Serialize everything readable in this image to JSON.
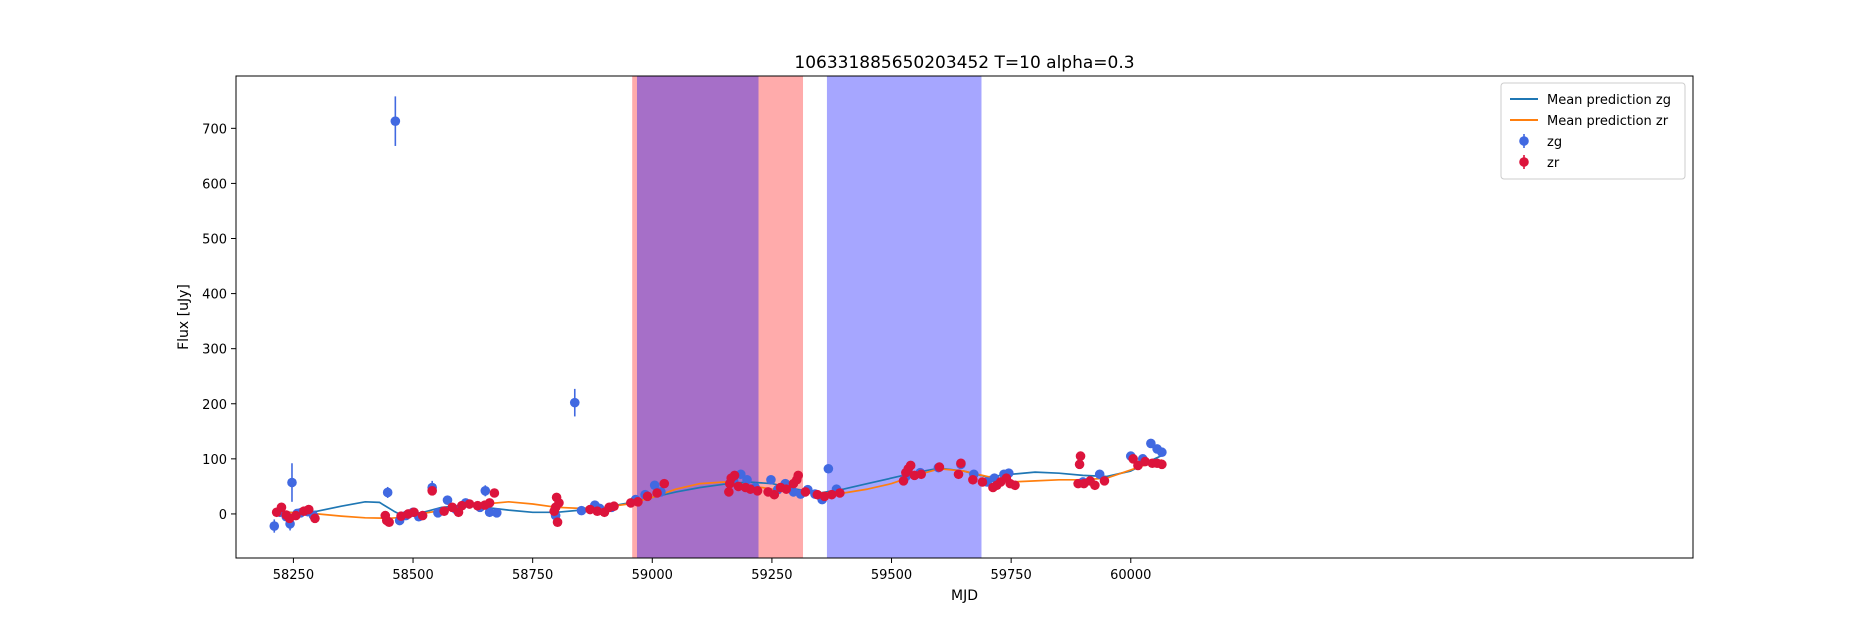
{
  "chart_data": {
    "type": "scatter",
    "title": "106331885650203452 T=10 alpha=0.3",
    "xlabel": "MJD",
    "ylabel": "Flux [uJy]",
    "xlim": [
      58130,
      61175
    ],
    "ylim": [
      -80,
      795
    ],
    "xticks": [
      58250,
      58500,
      58750,
      59000,
      59250,
      59500,
      59750,
      60000
    ],
    "yticks": [
      0,
      100,
      200,
      300,
      400,
      500,
      600,
      700
    ],
    "grid": false,
    "legend_position": "upper right",
    "legend": [
      {
        "label": "Mean prediction zg",
        "kind": "line",
        "color": "#1f77b4"
      },
      {
        "label": "Mean prediction zr",
        "kind": "line",
        "color": "#ff7f0e"
      },
      {
        "label": "zg",
        "kind": "errorbar",
        "color": "#4169e1"
      },
      {
        "label": "zr",
        "kind": "errorbar",
        "color": "#dc143c"
      }
    ],
    "bands": [
      {
        "x0": 58958,
        "x1": 59315,
        "color": "#ff0000",
        "opacity": 0.33
      },
      {
        "x0": 58968,
        "x1": 59222,
        "color": "#0000ff",
        "opacity": 0.35
      },
      {
        "x0": 59365,
        "x1": 59688,
        "color": "#0000ff",
        "opacity": 0.35
      }
    ],
    "lines": [
      {
        "name": "Mean prediction zg",
        "color": "#1f77b4",
        "x": [
          58210,
          58260,
          58300,
          58350,
          58400,
          58430,
          58460,
          58480,
          58500,
          58530,
          58560,
          58600,
          58650,
          58700,
          58750,
          58800,
          58850,
          58900,
          58950,
          59000,
          59050,
          59100,
          59150,
          59200,
          59250,
          59300,
          59350,
          59400,
          59450,
          59500,
          59550,
          59600,
          59650,
          59700,
          59750,
          59800,
          59850,
          59900,
          59950,
          60000,
          60050,
          60065
        ],
        "y": [
          5,
          2,
          5,
          14,
          22,
          21,
          5,
          -4,
          -2,
          5,
          12,
          15,
          12,
          7,
          3,
          3,
          7,
          12,
          20,
          30,
          40,
          48,
          54,
          58,
          55,
          45,
          38,
          45,
          55,
          65,
          75,
          83,
          78,
          67,
          72,
          76,
          74,
          70,
          68,
          78,
          100,
          106
        ]
      },
      {
        "name": "Mean prediction zr",
        "color": "#ff7f0e",
        "x": [
          58210,
          58260,
          58300,
          58350,
          58400,
          58450,
          58480,
          58500,
          58550,
          58600,
          58650,
          58700,
          58750,
          58800,
          58850,
          58900,
          58950,
          59000,
          59050,
          59100,
          59150,
          59200,
          59250,
          59300,
          59350,
          59400,
          59450,
          59500,
          59550,
          59600,
          59650,
          59700,
          59750,
          59800,
          59850,
          59900,
          59950,
          60000,
          60050,
          60065
        ],
        "y": [
          2,
          3,
          0,
          -4,
          -7,
          -8,
          -6,
          -2,
          5,
          12,
          18,
          22,
          18,
          12,
          10,
          12,
          18,
          30,
          45,
          55,
          58,
          52,
          45,
          42,
          38,
          38,
          45,
          55,
          70,
          82,
          78,
          68,
          58,
          60,
          62,
          62,
          65,
          80,
          95,
          98
        ]
      }
    ],
    "series": [
      {
        "name": "zg",
        "color": "#4169e1",
        "points": [
          [
            58210,
            -22,
            12
          ],
          [
            58222,
            3,
            6
          ],
          [
            58235,
            -5,
            8
          ],
          [
            58243,
            -18,
            12
          ],
          [
            58247,
            57,
            35
          ],
          [
            58258,
            1,
            5
          ],
          [
            58265,
            2,
            5
          ],
          [
            58280,
            4,
            5
          ],
          [
            58292,
            -3,
            5
          ],
          [
            58447,
            39,
            10
          ],
          [
            58463,
            713,
            45
          ],
          [
            58472,
            -12,
            6
          ],
          [
            58485,
            -3,
            5
          ],
          [
            58500,
            3,
            5
          ],
          [
            58512,
            -5,
            5
          ],
          [
            58540,
            48,
            12
          ],
          [
            58552,
            2,
            5
          ],
          [
            58572,
            25,
            6
          ],
          [
            58590,
            8,
            5
          ],
          [
            58610,
            20,
            6
          ],
          [
            58640,
            12,
            6
          ],
          [
            58651,
            42,
            10
          ],
          [
            58660,
            3,
            6
          ],
          [
            58675,
            2,
            5
          ],
          [
            58798,
            -3,
            8
          ],
          [
            58838,
            202,
            25
          ],
          [
            58852,
            6,
            5
          ],
          [
            58880,
            16,
            5
          ],
          [
            58890,
            10,
            5
          ],
          [
            58915,
            12,
            5
          ],
          [
            58965,
            26,
            4
          ],
          [
            58985,
            35,
            5
          ],
          [
            59005,
            52,
            5
          ],
          [
            59018,
            40,
            5
          ],
          [
            59170,
            60,
            6
          ],
          [
            59185,
            72,
            6
          ],
          [
            59198,
            62,
            6
          ],
          [
            59215,
            48,
            5
          ],
          [
            59248,
            62,
            5
          ],
          [
            59262,
            44,
            5
          ],
          [
            59278,
            55,
            5
          ],
          [
            59295,
            40,
            5
          ],
          [
            59310,
            36,
            5
          ],
          [
            59325,
            44,
            5
          ],
          [
            59340,
            36,
            5
          ],
          [
            59355,
            26,
            6
          ],
          [
            59368,
            82,
            6
          ],
          [
            59385,
            45,
            5
          ],
          [
            59530,
            68,
            5
          ],
          [
            59560,
            75,
            5
          ],
          [
            59598,
            84,
            5
          ],
          [
            59645,
            90,
            5
          ],
          [
            59672,
            72,
            5
          ],
          [
            59700,
            58,
            5
          ],
          [
            59715,
            65,
            5
          ],
          [
            59735,
            72,
            5
          ],
          [
            59745,
            74,
            6
          ],
          [
            59900,
            58,
            5
          ],
          [
            59935,
            72,
            5
          ],
          [
            60000,
            105,
            5
          ],
          [
            60025,
            100,
            5
          ],
          [
            60042,
            128,
            6
          ],
          [
            60055,
            118,
            6
          ],
          [
            60065,
            112,
            6
          ]
        ]
      },
      {
        "name": "zr",
        "color": "#dc143c",
        "points": [
          [
            58215,
            3,
            6
          ],
          [
            58225,
            12,
            6
          ],
          [
            58235,
            -2,
            6
          ],
          [
            58242,
            -8,
            6
          ],
          [
            58255,
            -3,
            5
          ],
          [
            58272,
            5,
            5
          ],
          [
            58282,
            8,
            5
          ],
          [
            58295,
            -8,
            5
          ],
          [
            58442,
            -3,
            5
          ],
          [
            58445,
            -12,
            5
          ],
          [
            58450,
            -15,
            5
          ],
          [
            58475,
            -4,
            5
          ],
          [
            58490,
            0,
            5
          ],
          [
            58502,
            3,
            5
          ],
          [
            58520,
            -3,
            5
          ],
          [
            58540,
            42,
            8
          ],
          [
            58565,
            5,
            5
          ],
          [
            58582,
            12,
            5
          ],
          [
            58595,
            3,
            5
          ],
          [
            58602,
            15,
            5
          ],
          [
            58618,
            18,
            5
          ],
          [
            58635,
            15,
            5
          ],
          [
            58650,
            16,
            5
          ],
          [
            58660,
            20,
            5
          ],
          [
            58670,
            38,
            6
          ],
          [
            58795,
            5,
            6
          ],
          [
            58798,
            12,
            6
          ],
          [
            58800,
            30,
            8
          ],
          [
            58802,
            -15,
            8
          ],
          [
            58805,
            20,
            6
          ],
          [
            58870,
            8,
            5
          ],
          [
            58885,
            5,
            5
          ],
          [
            58900,
            3,
            5
          ],
          [
            58910,
            12,
            5
          ],
          [
            58920,
            14,
            5
          ],
          [
            58955,
            20,
            4
          ],
          [
            58970,
            22,
            4
          ],
          [
            58990,
            32,
            4
          ],
          [
            59010,
            38,
            4
          ],
          [
            59025,
            55,
            5
          ],
          [
            59160,
            40,
            5
          ],
          [
            59162,
            55,
            5
          ],
          [
            59165,
            65,
            6
          ],
          [
            59172,
            70,
            6
          ],
          [
            59180,
            50,
            5
          ],
          [
            59195,
            48,
            5
          ],
          [
            59205,
            45,
            5
          ],
          [
            59220,
            42,
            5
          ],
          [
            59242,
            40,
            5
          ],
          [
            59255,
            35,
            5
          ],
          [
            59268,
            48,
            5
          ],
          [
            59280,
            45,
            5
          ],
          [
            59295,
            55,
            5
          ],
          [
            59302,
            62,
            5
          ],
          [
            59305,
            70,
            5
          ],
          [
            59320,
            40,
            5
          ],
          [
            59345,
            35,
            5
          ],
          [
            59360,
            32,
            5
          ],
          [
            59375,
            35,
            5
          ],
          [
            59392,
            38,
            5
          ],
          [
            59525,
            60,
            5
          ],
          [
            59530,
            75,
            5
          ],
          [
            59535,
            82,
            5
          ],
          [
            59540,
            88,
            5
          ],
          [
            59548,
            70,
            5
          ],
          [
            59562,
            72,
            5
          ],
          [
            59600,
            85,
            5
          ],
          [
            59640,
            72,
            5
          ],
          [
            59645,
            92,
            5
          ],
          [
            59670,
            62,
            5
          ],
          [
            59690,
            58,
            5
          ],
          [
            59712,
            48,
            5
          ],
          [
            59720,
            52,
            5
          ],
          [
            59728,
            58,
            5
          ],
          [
            59740,
            65,
            5
          ],
          [
            59748,
            55,
            5
          ],
          [
            59758,
            52,
            5
          ],
          [
            59890,
            55,
            5
          ],
          [
            59893,
            90,
            8
          ],
          [
            59895,
            105,
            8
          ],
          [
            59902,
            55,
            5
          ],
          [
            59915,
            60,
            5
          ],
          [
            59925,
            52,
            5
          ],
          [
            59945,
            60,
            5
          ],
          [
            60005,
            100,
            5
          ],
          [
            60015,
            88,
            5
          ],
          [
            60030,
            95,
            5
          ],
          [
            60045,
            92,
            5
          ],
          [
            60055,
            92,
            5
          ],
          [
            60065,
            90,
            5
          ]
        ]
      }
    ]
  }
}
